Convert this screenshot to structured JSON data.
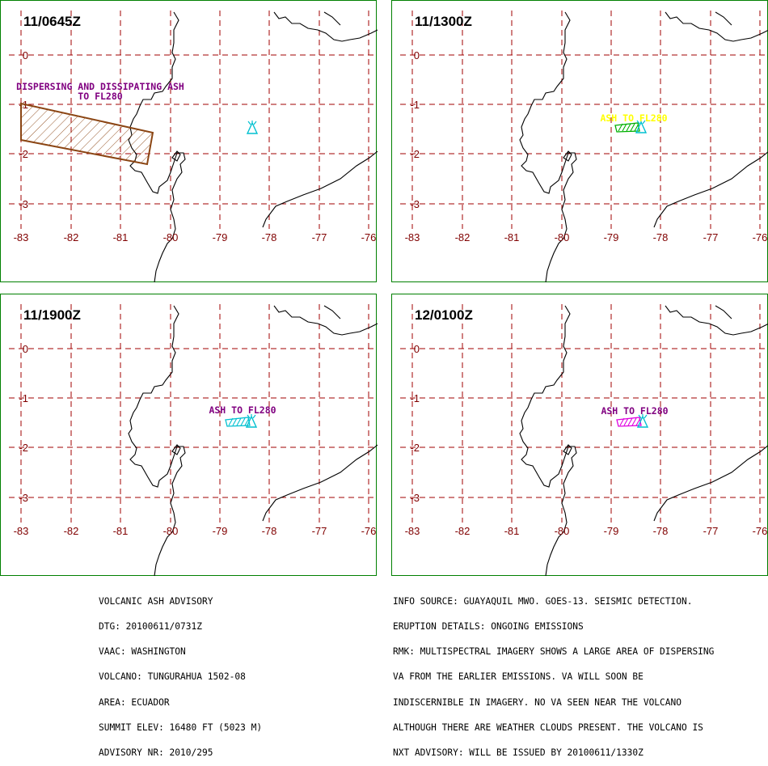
{
  "panels": [
    {
      "id": "p1",
      "time_label": "11/0645Z",
      "lat_labels": [
        "0",
        "-1",
        "-2",
        "-3"
      ],
      "lon_labels": [
        "-83",
        "-82",
        "-81",
        "-80",
        "-79",
        "-78",
        "-77",
        "-76"
      ],
      "annotation_lines": [
        "DISPERSING AND DISSIPATING ASH",
        "TO FL280"
      ],
      "annotation_color": "#800080",
      "polygon_color": "#8b4513",
      "volcano_color": "#00c0d0"
    },
    {
      "id": "p2",
      "time_label": "11/1300Z",
      "lat_labels": [
        "0",
        "-1",
        "-2",
        "-3"
      ],
      "lon_labels": [
        "-83",
        "-82",
        "-81",
        "-80",
        "-79",
        "-78",
        "-77",
        "-76"
      ],
      "annotation_lines": [
        "ASH TO FL280"
      ],
      "annotation_color": "#ffff00",
      "polygon_color": "#00b000",
      "volcano_color": "#00c0d0"
    },
    {
      "id": "p3",
      "time_label": "11/1900Z",
      "lat_labels": [
        "0",
        "-1",
        "-2",
        "-3"
      ],
      "lon_labels": [
        "-83",
        "-82",
        "-81",
        "-80",
        "-79",
        "-78",
        "-77",
        "-76"
      ],
      "annotation_lines": [
        "ASH TO FL280"
      ],
      "annotation_color": "#800080",
      "polygon_color": "#00c0d0",
      "volcano_color": "#00c0d0"
    },
    {
      "id": "p4",
      "time_label": "12/0100Z",
      "lat_labels": [
        "0",
        "-1",
        "-2",
        "-3"
      ],
      "lon_labels": [
        "-83",
        "-82",
        "-81",
        "-80",
        "-79",
        "-78",
        "-77",
        "-76"
      ],
      "annotation_lines": [
        "ASH TO FL280"
      ],
      "annotation_color": "#800080",
      "polygon_color": "#e000e0",
      "volcano_color": "#00c0d0"
    }
  ],
  "advisory_left": [
    "VOLCANIC ASH ADVISORY",
    "DTG: 20100611/0731Z",
    "VAAC: WASHINGTON",
    "VOLCANO: TUNGURAHUA 1502-08",
    "AREA: ECUADOR",
    "SUMMIT ELEV: 16480 FT (5023 M)",
    "ADVISORY NR: 2010/295"
  ],
  "advisory_right": [
    "INFO SOURCE: GUAYAQUIL MWO. GOES-13. SEISMIC DETECTION.",
    "ERUPTION DETAILS: ONGOING EMISSIONS",
    "RMK: MULTISPECTRAL IMAGERY SHOWS A LARGE AREA OF DISPERSING",
    "VA FROM THE EARLIER EMISSIONS. VA WILL SOON BE",
    "INDISCERNIBLE IN IMAGERY. NO VA SEEN NEAR THE VOLCANO",
    "ALTHOUGH THERE ARE WEATHER CLOUDS PRESENT. THE VOLCANO IS",
    "NXT ADVISORY: WILL BE ISSUED BY 20100611/1330Z"
  ],
  "colors": {
    "grid": "#a00000",
    "grid_label": "#800000",
    "coastline": "#000000",
    "panel_border": "#008000"
  }
}
